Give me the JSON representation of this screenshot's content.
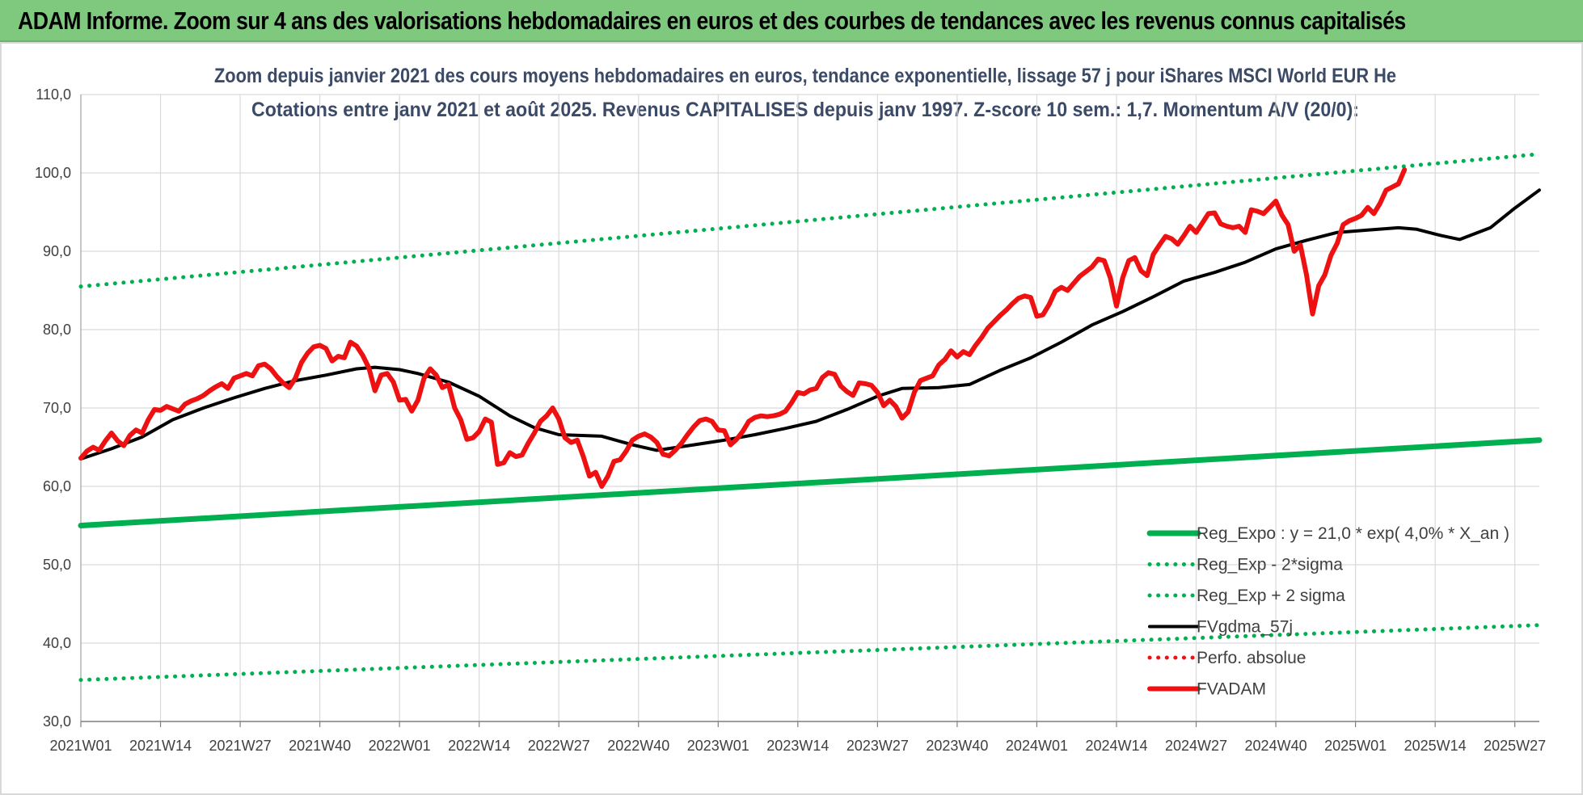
{
  "banner": {
    "title": "ADAM Informe. Zoom sur 4 ans des valorisations hebdomadaires en euros et des courbes de tendances avec les revenus connus capitalisés"
  },
  "colors": {
    "banner_bg": "#7fc97f",
    "green": "#00b050",
    "black": "#000000",
    "red": "#ee1111",
    "title_text": "#3b4a66"
  },
  "chart_data": {
    "type": "line",
    "title_lines": [
      "Zoom depuis janvier 2021 des cours moyens hebdomadaires en euros, tendance exponentielle, lissage 57 j pour iShares MSCI World EUR He",
      "Cotations entre janv 2021 et août 2025. Revenus CAPITALISES depuis janv 1997. Z-score 10 sem.: 1,7. Momentum A/V (20/0):"
    ],
    "xlabel": "",
    "ylabel": "",
    "ylim": [
      30,
      110
    ],
    "y_ticks": [
      "30,0",
      "40,0",
      "50,0",
      "60,0",
      "70,0",
      "80,0",
      "90,0",
      "100,0",
      "110,0"
    ],
    "x_ticks": [
      "2021W01",
      "2021W14",
      "2021W27",
      "2021W40",
      "2022W01",
      "2022W14",
      "2022W27",
      "2022W40",
      "2023W01",
      "2023W14",
      "2023W27",
      "2023W40",
      "2024W01",
      "2024W14",
      "2024W27",
      "2024W40",
      "2025W01",
      "2025W14",
      "2025W27"
    ],
    "x_tick_week_index": [
      0,
      13,
      26,
      39,
      52,
      65,
      78,
      91,
      104,
      117,
      130,
      143,
      156,
      169,
      182,
      195,
      208,
      221,
      234
    ],
    "x_range": [
      0,
      238
    ],
    "grid": true,
    "legend_placement": "bottom-right",
    "series": [
      {
        "name": "Reg_Expo : y = 21,0 * exp( 4,0% *  X_an )",
        "style": "solid-thick",
        "color": "#00b050",
        "points": [
          [
            0,
            55.0
          ],
          [
            238,
            65.9
          ]
        ]
      },
      {
        "name": "Reg_Exp - 2*sigma",
        "style": "dotted",
        "color": "#00b050",
        "points": [
          [
            0,
            35.3
          ],
          [
            238,
            42.3
          ]
        ]
      },
      {
        "name": "Reg_Exp + 2 sigma",
        "style": "dotted",
        "color": "#00b050",
        "points": [
          [
            0,
            85.5
          ],
          [
            238,
            102.4
          ]
        ]
      },
      {
        "name": "FVgdma_57j",
        "style": "solid",
        "color": "#000000",
        "points": [
          [
            0,
            63.5
          ],
          [
            5,
            64.8
          ],
          [
            10,
            66.3
          ],
          [
            15,
            68.5
          ],
          [
            20,
            70.0
          ],
          [
            25,
            71.3
          ],
          [
            30,
            72.5
          ],
          [
            35,
            73.5
          ],
          [
            40,
            74.2
          ],
          [
            45,
            75.0
          ],
          [
            48,
            75.2
          ],
          [
            52,
            74.9
          ],
          [
            55,
            74.4
          ],
          [
            60,
            73.3
          ],
          [
            65,
            71.5
          ],
          [
            70,
            69.0
          ],
          [
            74,
            67.5
          ],
          [
            78,
            66.6
          ],
          [
            85,
            66.4
          ],
          [
            90,
            65.3
          ],
          [
            94,
            64.6
          ],
          [
            100,
            65.3
          ],
          [
            105,
            65.9
          ],
          [
            110,
            66.6
          ],
          [
            115,
            67.4
          ],
          [
            120,
            68.3
          ],
          [
            125,
            69.8
          ],
          [
            130,
            71.5
          ],
          [
            134,
            72.5
          ],
          [
            140,
            72.6
          ],
          [
            145,
            73.0
          ],
          [
            150,
            74.8
          ],
          [
            155,
            76.4
          ],
          [
            160,
            78.4
          ],
          [
            165,
            80.6
          ],
          [
            170,
            82.3
          ],
          [
            175,
            84.2
          ],
          [
            180,
            86.2
          ],
          [
            185,
            87.3
          ],
          [
            190,
            88.6
          ],
          [
            195,
            90.3
          ],
          [
            200,
            91.4
          ],
          [
            205,
            92.4
          ],
          [
            210,
            92.7
          ],
          [
            215,
            93.0
          ],
          [
            218,
            92.8
          ],
          [
            222,
            92.0
          ],
          [
            225,
            91.5
          ],
          [
            230,
            93.0
          ],
          [
            234,
            95.5
          ],
          [
            238,
            97.8
          ]
        ]
      },
      {
        "name": "Perfo. absolue",
        "style": "dotted",
        "color": "#ee1111",
        "points": []
      },
      {
        "name": "FVADAM",
        "style": "solid-thick",
        "color": "#ee1111",
        "points": [
          [
            0,
            63.6
          ],
          [
            1,
            64.5
          ],
          [
            2,
            65.0
          ],
          [
            3,
            64.6
          ],
          [
            4,
            65.8
          ],
          [
            5,
            66.8
          ],
          [
            6,
            65.8
          ],
          [
            7,
            65.2
          ],
          [
            8,
            66.5
          ],
          [
            9,
            67.2
          ],
          [
            10,
            66.8
          ],
          [
            11,
            68.5
          ],
          [
            12,
            69.8
          ],
          [
            13,
            69.7
          ],
          [
            14,
            70.2
          ],
          [
            15,
            69.9
          ],
          [
            16,
            69.6
          ],
          [
            17,
            70.5
          ],
          [
            18,
            70.9
          ],
          [
            19,
            71.2
          ],
          [
            20,
            71.6
          ],
          [
            21,
            72.2
          ],
          [
            22,
            72.7
          ],
          [
            23,
            73.1
          ],
          [
            24,
            72.5
          ],
          [
            25,
            73.8
          ],
          [
            26,
            74.1
          ],
          [
            27,
            74.4
          ],
          [
            28,
            74.1
          ],
          [
            29,
            75.4
          ],
          [
            30,
            75.6
          ],
          [
            31,
            75.0
          ],
          [
            32,
            74.0
          ],
          [
            33,
            73.2
          ],
          [
            34,
            72.6
          ],
          [
            35,
            73.8
          ],
          [
            36,
            75.8
          ],
          [
            37,
            77.0
          ],
          [
            38,
            77.8
          ],
          [
            39,
            78.0
          ],
          [
            40,
            77.6
          ],
          [
            41,
            76.0
          ],
          [
            42,
            76.6
          ],
          [
            43,
            76.4
          ],
          [
            44,
            78.4
          ],
          [
            45,
            77.9
          ],
          [
            46,
            76.7
          ],
          [
            47,
            75.1
          ],
          [
            48,
            72.2
          ],
          [
            49,
            74.2
          ],
          [
            50,
            74.4
          ],
          [
            51,
            73.3
          ],
          [
            52,
            71.0
          ],
          [
            53,
            71.1
          ],
          [
            54,
            69.6
          ],
          [
            55,
            71.0
          ],
          [
            56,
            73.8
          ],
          [
            57,
            75.0
          ],
          [
            58,
            74.2
          ],
          [
            59,
            72.6
          ],
          [
            60,
            73.0
          ],
          [
            61,
            70.0
          ],
          [
            62,
            68.5
          ],
          [
            63,
            66.0
          ],
          [
            64,
            66.2
          ],
          [
            65,
            67.0
          ],
          [
            66,
            68.6
          ],
          [
            67,
            68.2
          ],
          [
            68,
            62.8
          ],
          [
            69,
            63.0
          ],
          [
            70,
            64.3
          ],
          [
            71,
            63.8
          ],
          [
            72,
            64.0
          ],
          [
            73,
            65.5
          ],
          [
            74,
            66.8
          ],
          [
            75,
            68.3
          ],
          [
            76,
            69.0
          ],
          [
            77,
            70.0
          ],
          [
            78,
            68.6
          ],
          [
            79,
            66.2
          ],
          [
            80,
            65.6
          ],
          [
            81,
            65.9
          ],
          [
            82,
            63.8
          ],
          [
            83,
            61.3
          ],
          [
            84,
            61.8
          ],
          [
            85,
            60.0
          ],
          [
            86,
            61.3
          ],
          [
            87,
            63.2
          ],
          [
            88,
            63.4
          ],
          [
            89,
            64.5
          ],
          [
            90,
            65.9
          ],
          [
            91,
            66.4
          ],
          [
            92,
            66.7
          ],
          [
            93,
            66.3
          ],
          [
            94,
            65.6
          ],
          [
            95,
            64.1
          ],
          [
            96,
            63.9
          ],
          [
            97,
            64.6
          ],
          [
            98,
            65.5
          ],
          [
            99,
            66.6
          ],
          [
            100,
            67.6
          ],
          [
            101,
            68.4
          ],
          [
            102,
            68.6
          ],
          [
            103,
            68.3
          ],
          [
            104,
            67.2
          ],
          [
            105,
            67.1
          ],
          [
            106,
            65.3
          ],
          [
            107,
            66.0
          ],
          [
            108,
            67.0
          ],
          [
            109,
            68.3
          ],
          [
            110,
            68.8
          ],
          [
            111,
            69.0
          ],
          [
            112,
            68.9
          ],
          [
            113,
            69.0
          ],
          [
            114,
            69.2
          ],
          [
            115,
            69.6
          ],
          [
            116,
            70.7
          ],
          [
            117,
            72.0
          ],
          [
            118,
            71.8
          ],
          [
            119,
            72.3
          ],
          [
            120,
            72.5
          ],
          [
            121,
            73.9
          ],
          [
            122,
            74.5
          ],
          [
            123,
            74.3
          ],
          [
            124,
            72.8
          ],
          [
            125,
            72.1
          ],
          [
            126,
            71.6
          ],
          [
            127,
            73.2
          ],
          [
            128,
            73.1
          ],
          [
            129,
            72.9
          ],
          [
            130,
            72.0
          ],
          [
            131,
            70.3
          ],
          [
            132,
            71.0
          ],
          [
            133,
            70.2
          ],
          [
            134,
            68.7
          ],
          [
            135,
            69.5
          ],
          [
            136,
            72.0
          ],
          [
            137,
            73.5
          ],
          [
            138,
            73.8
          ],
          [
            139,
            74.1
          ],
          [
            140,
            75.5
          ],
          [
            141,
            76.2
          ],
          [
            142,
            77.3
          ],
          [
            143,
            76.5
          ],
          [
            144,
            77.2
          ],
          [
            145,
            76.8
          ],
          [
            146,
            78.0
          ],
          [
            147,
            79.0
          ],
          [
            148,
            80.2
          ],
          [
            149,
            81.0
          ],
          [
            150,
            81.8
          ],
          [
            151,
            82.5
          ],
          [
            152,
            83.3
          ],
          [
            153,
            84.0
          ],
          [
            154,
            84.3
          ],
          [
            155,
            84.1
          ],
          [
            156,
            81.7
          ],
          [
            157,
            81.9
          ],
          [
            158,
            83.2
          ],
          [
            159,
            84.9
          ],
          [
            160,
            85.4
          ],
          [
            161,
            85.0
          ],
          [
            162,
            85.9
          ],
          [
            163,
            86.8
          ],
          [
            164,
            87.4
          ],
          [
            165,
            88.0
          ],
          [
            166,
            89.0
          ],
          [
            167,
            88.8
          ],
          [
            168,
            86.6
          ],
          [
            169,
            83.0
          ],
          [
            170,
            86.6
          ],
          [
            171,
            88.8
          ],
          [
            172,
            89.2
          ],
          [
            173,
            87.5
          ],
          [
            174,
            86.9
          ],
          [
            175,
            89.6
          ],
          [
            176,
            90.8
          ],
          [
            177,
            91.9
          ],
          [
            178,
            91.6
          ],
          [
            179,
            90.9
          ],
          [
            180,
            92.0
          ],
          [
            181,
            93.2
          ],
          [
            182,
            92.4
          ],
          [
            183,
            93.6
          ],
          [
            184,
            94.8
          ],
          [
            185,
            94.9
          ],
          [
            186,
            93.5
          ],
          [
            187,
            93.2
          ],
          [
            188,
            93.0
          ],
          [
            189,
            93.2
          ],
          [
            190,
            92.4
          ],
          [
            191,
            95.3
          ],
          [
            192,
            95.1
          ],
          [
            193,
            94.8
          ],
          [
            194,
            95.6
          ],
          [
            195,
            96.4
          ],
          [
            196,
            94.6
          ],
          [
            197,
            93.4
          ],
          [
            198,
            90.0
          ],
          [
            199,
            90.8
          ],
          [
            200,
            87.0
          ],
          [
            201,
            82.0
          ],
          [
            202,
            85.6
          ],
          [
            203,
            87.0
          ],
          [
            204,
            89.5
          ],
          [
            205,
            91.0
          ],
          [
            206,
            93.4
          ],
          [
            207,
            93.9
          ],
          [
            208,
            94.2
          ],
          [
            209,
            94.6
          ],
          [
            210,
            95.6
          ],
          [
            211,
            94.8
          ],
          [
            212,
            96.1
          ],
          [
            213,
            97.8
          ],
          [
            214,
            98.2
          ],
          [
            215,
            98.6
          ],
          [
            216,
            100.4
          ]
        ]
      }
    ]
  }
}
